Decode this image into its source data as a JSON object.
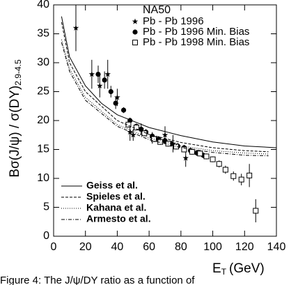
{
  "chart_data": {
    "type": "scatter",
    "title": "NA50",
    "ylabel": "Bσ(J/ψ) / σ(DY)",
    "ylabel_sub": "2.9-4.5",
    "xlabel": "E",
    "xlabel_sub": "T",
    "xlabel_unit": "(GeV)",
    "caption": "Figure 4: The J/ψ/DY ratio as a function of",
    "xlim": [
      0,
      140
    ],
    "ylim": [
      0,
      40
    ],
    "xticks": [
      0,
      20,
      40,
      60,
      80,
      100,
      120,
      140
    ],
    "yticks": [
      0,
      5,
      10,
      15,
      20,
      25,
      30,
      35,
      40
    ],
    "color": "#000000",
    "series": [
      {
        "name": "Pb - Pb 1996",
        "type": "scatter",
        "marker": "star",
        "x": [
          14,
          24,
          29,
          34,
          40,
          48,
          50,
          55,
          62,
          70,
          75,
          83
        ],
        "values": [
          36,
          28,
          26,
          28,
          24,
          18,
          17.5,
          18.5,
          17,
          17.5,
          16,
          13.5
        ],
        "errors": [
          4,
          2.5,
          2,
          2.5,
          1.5,
          1.5,
          1,
          1,
          1,
          1.5,
          1.5,
          1.5
        ]
      },
      {
        "name": "Pb - Pb 1996 Min. Bias",
        "type": "scatter",
        "marker": "circle",
        "x": [
          28,
          32,
          36,
          39,
          44,
          48,
          52,
          55,
          58,
          62,
          66,
          70,
          74,
          78,
          82,
          86,
          90,
          94
        ],
        "values": [
          28,
          27,
          25,
          23,
          21.8,
          20,
          19,
          18.5,
          18,
          17.3,
          16.8,
          16.5,
          16,
          15.6,
          15.3,
          14.8,
          14.4,
          14
        ],
        "errors": [
          1.5,
          1.5,
          1,
          1,
          0.5,
          0.5,
          0.5,
          0.5,
          0.5,
          0.5,
          0.5,
          0.5,
          0.5,
          0.5,
          0.5,
          0.5,
          0.5,
          0.5
        ]
      },
      {
        "name": "Pb - Pb 1998 Min. Bias",
        "type": "scatter",
        "marker": "square",
        "x": [
          47,
          52,
          57,
          63,
          67,
          72,
          77,
          82,
          87,
          92,
          96,
          100,
          104,
          108,
          113,
          118,
          123,
          127
        ],
        "values": [
          19.3,
          18.8,
          17.8,
          16.8,
          16.3,
          16,
          15.5,
          15,
          14.6,
          14.3,
          13.8,
          13.3,
          12.5,
          11.5,
          10.4,
          9.8,
          10.5,
          4.4
        ],
        "errors": [
          0.5,
          0.5,
          0.5,
          0.5,
          0.5,
          0.5,
          0.5,
          0.5,
          0.5,
          0.5,
          0.5,
          0.5,
          0.6,
          0.7,
          0.8,
          1,
          2,
          2
        ]
      },
      {
        "name": "Geiss et al.",
        "type": "line",
        "dash": "none",
        "x": [
          5,
          10,
          20,
          30,
          40,
          60,
          80,
          100,
          120,
          140
        ],
        "values": [
          38,
          31,
          26,
          23,
          21,
          18.8,
          17.4,
          16.3,
          15.6,
          15.3
        ]
      },
      {
        "name": "Spieles et al.",
        "type": "line",
        "dash": "4 2",
        "x": [
          5,
          10,
          20,
          40,
          60,
          80,
          100,
          120,
          135
        ],
        "values": [
          37,
          30,
          25,
          20,
          17.6,
          16.2,
          15.3,
          14.8,
          14.6
        ]
      },
      {
        "name": "Kahana et al.",
        "type": "line",
        "dash": "1 2",
        "x": [
          5,
          10,
          20,
          40,
          60,
          80,
          100,
          120,
          135
        ],
        "values": [
          34,
          29,
          24,
          19.3,
          17,
          15.6,
          14.8,
          14.4,
          14.2
        ]
      },
      {
        "name": "Armesto et al.",
        "type": "line",
        "dash": "5 2 1 2",
        "x": [
          5,
          10,
          20,
          40,
          60,
          80,
          100,
          120,
          135
        ],
        "values": [
          33.5,
          28.5,
          23.5,
          19,
          16.7,
          15.3,
          14.5,
          14,
          13.9
        ]
      }
    ]
  }
}
